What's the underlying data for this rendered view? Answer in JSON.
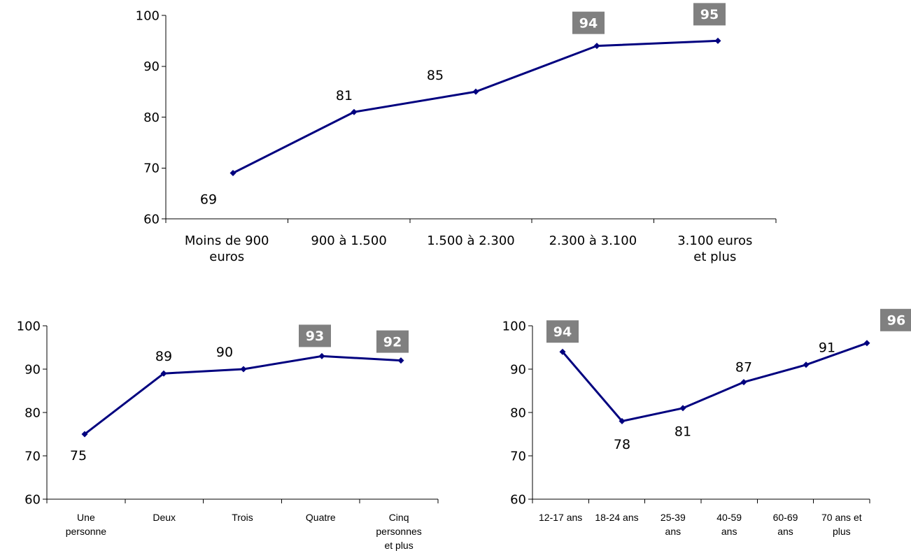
{
  "colors": {
    "series": "#00007f",
    "highlight_bg": "#808080",
    "highlight_text": "#ffffff",
    "text": "#000000",
    "axis": "#000000"
  },
  "chart_data": [
    {
      "type": "line",
      "title": "",
      "xlabel": "",
      "ylabel": "",
      "categories": [
        [
          "Moins de 900",
          "euros"
        ],
        [
          "900 à 1.500"
        ],
        [
          "1.500 à 2.300"
        ],
        [
          "2.300 à 3.100"
        ],
        [
          "3.100 euros",
          "et plus"
        ]
      ],
      "series": [
        {
          "values": [
            69,
            81,
            85,
            94,
            95
          ],
          "data_labels": [
            "69",
            "81",
            "85",
            "94",
            "95"
          ],
          "highlighted": [
            false,
            false,
            false,
            true,
            true
          ]
        }
      ],
      "yticks": [
        "60",
        "70",
        "80",
        "90",
        "100"
      ],
      "ylim": [
        60,
        100
      ],
      "grid": false,
      "legend": "none"
    },
    {
      "type": "line",
      "title": "",
      "xlabel": "",
      "ylabel": "",
      "categories": [
        [
          "Une",
          "personne"
        ],
        [
          "Deux"
        ],
        [
          "Trois"
        ],
        [
          "Quatre"
        ],
        [
          "Cinq",
          "personnes",
          "et plus"
        ]
      ],
      "series": [
        {
          "values": [
            75,
            89,
            90,
            93,
            92
          ],
          "data_labels": [
            "75",
            "89",
            "90",
            "93",
            "92"
          ],
          "highlighted": [
            false,
            false,
            false,
            true,
            true
          ]
        }
      ],
      "yticks": [
        "60",
        "70",
        "80",
        "90",
        "100"
      ],
      "ylim": [
        60,
        100
      ],
      "grid": false,
      "legend": "none"
    },
    {
      "type": "line",
      "title": "",
      "xlabel": "",
      "ylabel": "",
      "categories": [
        [
          "12-17 ans"
        ],
        [
          "18-24 ans"
        ],
        [
          "25-39",
          "ans"
        ],
        [
          "40-59",
          "ans"
        ],
        [
          "60-69",
          "ans"
        ],
        [
          "70 ans et",
          "plus"
        ]
      ],
      "series": [
        {
          "values": [
            94,
            78,
            81,
            87,
            91,
            96
          ],
          "data_labels": [
            "94",
            "78",
            "81",
            "87",
            "91",
            "96"
          ],
          "highlighted": [
            true,
            false,
            false,
            false,
            false,
            true
          ]
        }
      ],
      "yticks": [
        "60",
        "70",
        "80",
        "90",
        "100"
      ],
      "ylim": [
        60,
        100
      ],
      "grid": false,
      "legend": "none"
    }
  ]
}
